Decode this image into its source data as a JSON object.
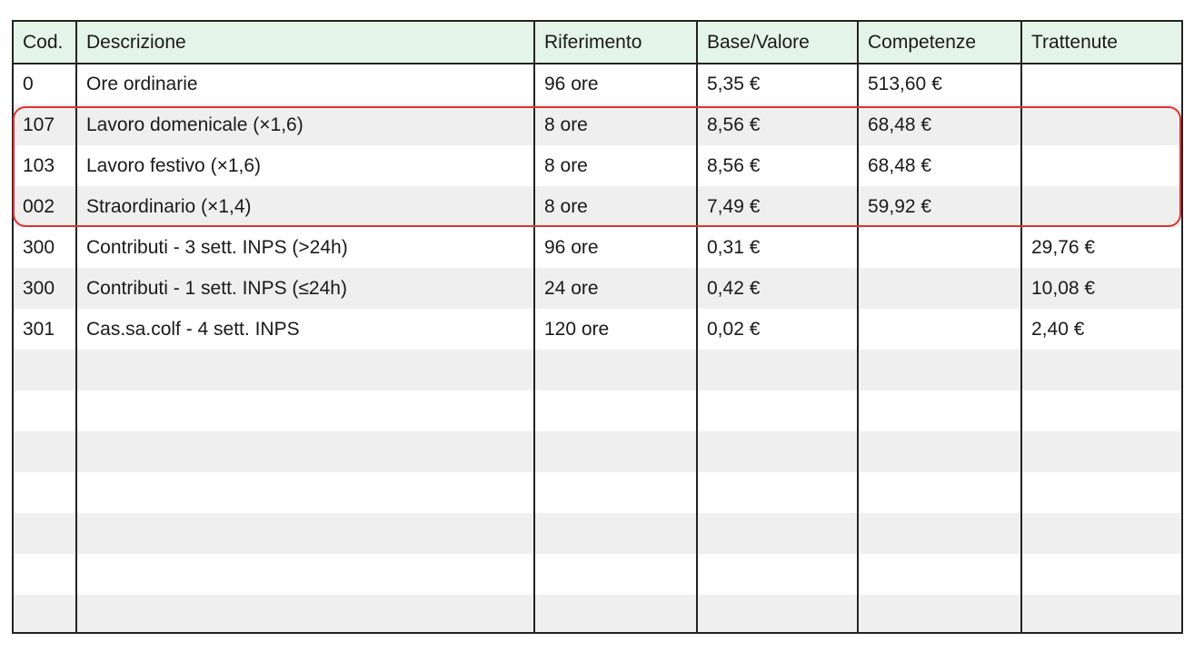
{
  "table": {
    "headers": [
      "Cod.",
      "Descrizione",
      "Riferimento",
      "Base/Valore",
      "Competenze",
      "Trattenute"
    ],
    "rows": [
      {
        "cod": "0",
        "descrizione": "Ore ordinarie",
        "riferimento": "96 ore",
        "base": "5,35 €",
        "competenze": "513,60 €",
        "trattenute": ""
      },
      {
        "cod": "107",
        "descrizione": "Lavoro domenicale (×1,6)",
        "riferimento": "8 ore",
        "base": "8,56 €",
        "competenze": "68,48 €",
        "trattenute": ""
      },
      {
        "cod": "103",
        "descrizione": "Lavoro festivo (×1,6)",
        "riferimento": "8 ore",
        "base": "8,56 €",
        "competenze": "68,48 €",
        "trattenute": ""
      },
      {
        "cod": "002",
        "descrizione": "Straordinario (×1,4)",
        "riferimento": "8 ore",
        "base": "7,49 €",
        "competenze": "59,92 €",
        "trattenute": ""
      },
      {
        "cod": "300",
        "descrizione": "Contributi - 3 sett. INPS (>24h)",
        "riferimento": "96 ore",
        "base": "0,31 €",
        "competenze": "",
        "trattenute": "29,76 €"
      },
      {
        "cod": "300",
        "descrizione": "Contributi - 1 sett. INPS (≤24h)",
        "riferimento": "24 ore",
        "base": "0,42 €",
        "competenze": "",
        "trattenute": "10,08 €"
      },
      {
        "cod": "301",
        "descrizione": "Cas.sa.colf - 4 sett. INPS",
        "riferimento": "120 ore",
        "base": "0,02 €",
        "competenze": "",
        "trattenute": "2,40 €"
      },
      {
        "cod": "",
        "descrizione": "",
        "riferimento": "",
        "base": "",
        "competenze": "",
        "trattenute": ""
      },
      {
        "cod": "",
        "descrizione": "",
        "riferimento": "",
        "base": "",
        "competenze": "",
        "trattenute": ""
      },
      {
        "cod": "",
        "descrizione": "",
        "riferimento": "",
        "base": "",
        "competenze": "",
        "trattenute": ""
      },
      {
        "cod": "",
        "descrizione": "",
        "riferimento": "",
        "base": "",
        "competenze": "",
        "trattenute": ""
      },
      {
        "cod": "",
        "descrizione": "",
        "riferimento": "",
        "base": "",
        "competenze": "",
        "trattenute": ""
      },
      {
        "cod": "",
        "descrizione": "",
        "riferimento": "",
        "base": "",
        "competenze": "",
        "trattenute": ""
      },
      {
        "cod": "",
        "descrizione": "",
        "riferimento": "",
        "base": "",
        "competenze": "",
        "trattenute": ""
      }
    ]
  },
  "colors": {
    "header_background": "#e4f4e8",
    "stripe_background": "#efefef",
    "highlight_border": "#e0312f",
    "grid_line": "#222222"
  }
}
